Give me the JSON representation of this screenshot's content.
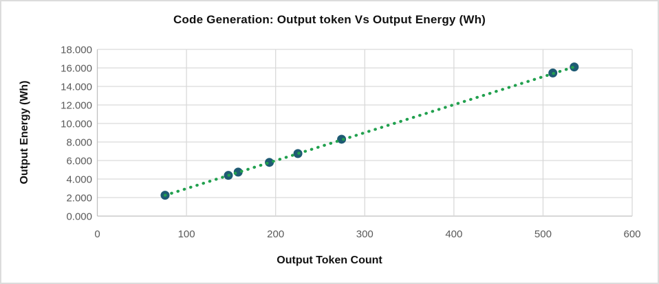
{
  "chart_data": {
    "type": "scatter",
    "title": "Code Generation: Output token Vs Output Energy (Wh)",
    "xlabel": "Output Token Count",
    "ylabel": "Output Energy (Wh)",
    "xlim": [
      0,
      600
    ],
    "ylim": [
      0,
      18
    ],
    "x_tick_values": [
      0,
      100,
      200,
      300,
      400,
      500,
      600
    ],
    "x_tick_labels": [
      "0",
      "100",
      "200",
      "300",
      "400",
      "500",
      "600"
    ],
    "y_tick_values": [
      0,
      2,
      4,
      6,
      8,
      10,
      12,
      14,
      16,
      18
    ],
    "y_tick_labels": [
      "0.000",
      "2.000",
      "4.000",
      "6.000",
      "8.000",
      "10.000",
      "12.000",
      "14.000",
      "16.000",
      "18.000"
    ],
    "grid": true,
    "legend": "none",
    "points": [
      {
        "x": 76,
        "y": 2.25
      },
      {
        "x": 147,
        "y": 4.4
      },
      {
        "x": 158,
        "y": 4.75
      },
      {
        "x": 193,
        "y": 5.8
      },
      {
        "x": 225,
        "y": 6.75
      },
      {
        "x": 274,
        "y": 8.3
      },
      {
        "x": 511,
        "y": 15.45
      },
      {
        "x": 535,
        "y": 16.1
      }
    ],
    "trendline": {
      "type": "linear",
      "style": "dotted",
      "slope": 0.0302,
      "intercept": -0.05,
      "x_start": 76,
      "x_end": 535
    },
    "colors": {
      "marker": "#1e5a73",
      "trendline": "#21a04e",
      "gridline": "#d9d9d9",
      "axis_line": "#bfbfbf",
      "tick_text": "#595959",
      "title_text": "#111111"
    }
  }
}
